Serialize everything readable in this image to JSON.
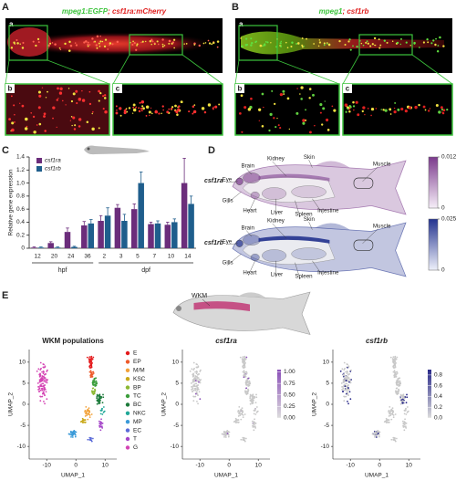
{
  "panels": {
    "A": {
      "label": "A",
      "image_label": "a",
      "title": [
        "mpeg1:EGFP",
        "; csf1ra:mCherry"
      ],
      "zoom_labels": [
        "b",
        "c"
      ]
    },
    "B": {
      "label": "B",
      "image_label": "a",
      "title": [
        "mpeg1",
        "; csf1rb"
      ],
      "zoom_labels": [
        "b",
        "c"
      ]
    },
    "D": {
      "label": "D",
      "fish": [
        {
          "name": "csf1ra",
          "scale_ticks": [
            0.012,
            0
          ],
          "color": "#7b3a8c"
        },
        {
          "name": "csf1rb",
          "scale_ticks": [
            0.025,
            0
          ],
          "color": "#23338f"
        }
      ],
      "organs": [
        "Eye",
        "Brain",
        "Kidney",
        "Skin",
        "Muscle",
        "Gills",
        "Heart",
        "Liver",
        "Spleen",
        "Intestine"
      ]
    },
    "E": {
      "label": "E",
      "fish_label": "WKM",
      "xlabel": "UMAP_1",
      "ylabel": "UMAP_2",
      "xlim": [
        -16,
        14
      ],
      "ylim": [
        -13,
        13
      ],
      "xticks": [
        -10,
        0,
        10
      ],
      "yticks": [
        10,
        5,
        0,
        -5,
        -10
      ],
      "umaps": [
        {
          "title": "WKM populations"
        },
        {
          "title": "csf1ra",
          "color": "#8a4fb8",
          "scale_lim": [
            0,
            1.05
          ],
          "scale_ticks": [
            {
              "value": 1,
              "label": "1.00"
            },
            0.75,
            {
              "value": 0.5,
              "label": "0.50"
            },
            0.25,
            {
              "value": 0,
              "label": "0.00"
            }
          ]
        },
        {
          "title": "csf1rb",
          "color": "#2a2a8a",
          "scale_lim": [
            0,
            0.9
          ],
          "scale_ticks": [
            0.8,
            0.6,
            0.4,
            0.2,
            {
              "value": 0,
              "label": "0.0"
            }
          ]
        }
      ],
      "populations": [
        {
          "name": "E",
          "color": "#e41a1c"
        },
        {
          "name": "EP",
          "color": "#ee5a2a"
        },
        {
          "name": "M/M",
          "color": "#f2a23a"
        },
        {
          "name": "KSC",
          "color": "#c8a818"
        },
        {
          "name": "BP",
          "color": "#8cb832"
        },
        {
          "name": "TC",
          "color": "#3c9e3c"
        },
        {
          "name": "BC",
          "color": "#1c7a3a"
        },
        {
          "name": "NKC",
          "color": "#20a898"
        },
        {
          "name": "MP",
          "color": "#3a9ad8"
        },
        {
          "name": "EC",
          "color": "#5a6ad8"
        },
        {
          "name": "T",
          "color": "#a444c8"
        },
        {
          "name": "G",
          "color": "#d444b4"
        }
      ]
    }
  },
  "chart_data": {
    "type": "bar",
    "label": "C",
    "ylabel": "Relative gene expression",
    "categories": [
      "12",
      "20",
      "24",
      "36",
      "2",
      "3",
      "5",
      "7",
      "10",
      "14"
    ],
    "x_groups": [
      "hpf",
      "dpf"
    ],
    "series": [
      {
        "name": "csf1ra",
        "color": "#6b2d7b",
        "values": [
          0.01,
          0.08,
          0.25,
          0.35,
          0.42,
          0.62,
          0.6,
          0.37,
          0.36,
          1.0
        ],
        "errors": [
          0.01,
          0.02,
          0.06,
          0.06,
          0.08,
          0.05,
          0.08,
          0.03,
          0.04,
          0.38
        ]
      },
      {
        "name": "csf1rb",
        "color": "#1f5e8c",
        "values": [
          0.01,
          0.01,
          0.02,
          0.38,
          0.5,
          0.42,
          1.0,
          0.38,
          0.4,
          0.68
        ],
        "errors": [
          0.01,
          0.01,
          0.01,
          0.06,
          0.12,
          0.1,
          0.17,
          0.04,
          0.05,
          0.12
        ]
      }
    ],
    "ylim": [
      0,
      1.4
    ],
    "yticks": [
      0,
      0.2,
      0.4,
      0.6,
      0.8,
      {
        "value": 1,
        "label": "1.0"
      },
      1.2,
      1.4
    ]
  }
}
